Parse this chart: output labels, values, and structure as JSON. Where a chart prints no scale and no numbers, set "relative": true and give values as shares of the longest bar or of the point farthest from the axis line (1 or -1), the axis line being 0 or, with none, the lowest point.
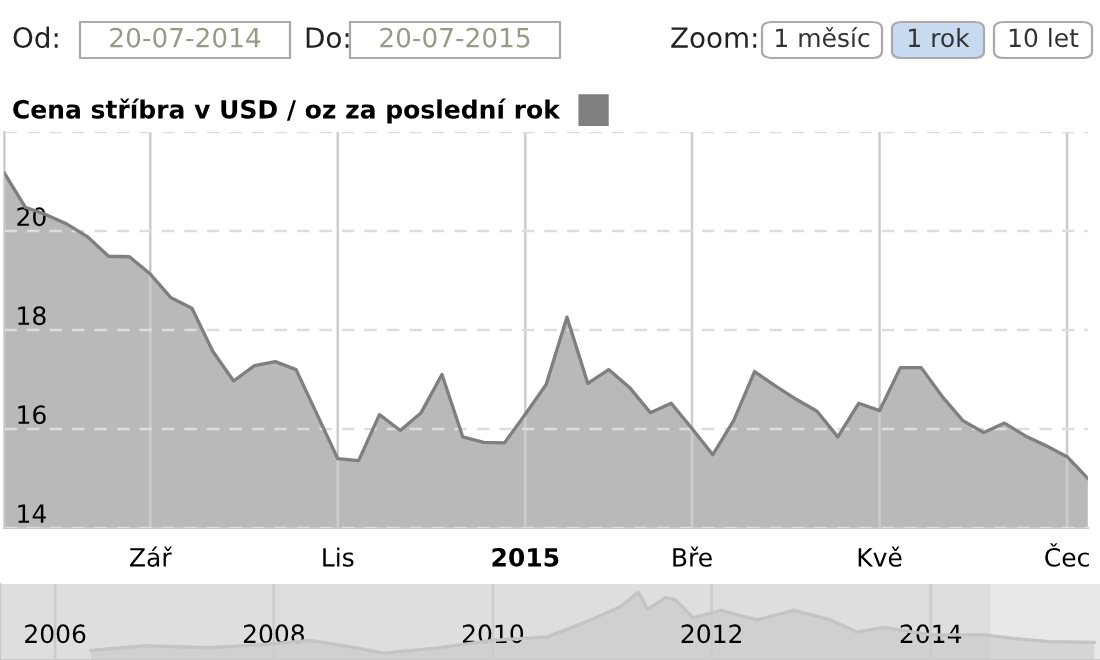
{
  "chart_data": [
    {
      "type": "area",
      "ylim": [
        14,
        22
      ],
      "yticks": [
        14,
        16,
        18,
        20,
        {
          "value": 22,
          "label": null
        }
      ],
      "categories": [
        null,
        null,
        null,
        null,
        null,
        null,
        null,
        "Zář",
        null,
        null,
        null,
        null,
        null,
        null,
        null,
        null,
        "Lis",
        null,
        null,
        null,
        null,
        null,
        null,
        null,
        null,
        "2015",
        null,
        null,
        null,
        null,
        null,
        null,
        null,
        "Bře",
        null,
        null,
        null,
        null,
        null,
        null,
        null,
        null,
        "Kvě",
        null,
        null,
        null,
        null,
        null,
        null,
        null,
        null,
        "Čec",
        null
      ],
      "grid": true,
      "legend": "top left",
      "annotations": [
        "Od:",
        "20-07-2014",
        "Do:",
        "20-07-2015",
        "Zoom:",
        "1 měsíc",
        "1 rok",
        "10 let"
      ],
      "series": [
        {
          "name": "Cena stříbra v USD / oz za poslední rok",
          "color": "#7f7f7f",
          "values": [
            21.17,
            20.48,
            20.33,
            20.14,
            19.88,
            19.49,
            19.48,
            19.13,
            18.65,
            18.44,
            17.57,
            16.97,
            17.28,
            17.36,
            17.2,
            16.3,
            15.4,
            15.36,
            16.29,
            15.97,
            16.33,
            17.1,
            15.84,
            15.73,
            15.72,
            16.3,
            16.9,
            18.26,
            16.92,
            17.2,
            16.84,
            16.33,
            16.52,
            16.01,
            15.48,
            16.17,
            17.16,
            16.87,
            16.6,
            16.36,
            15.84,
            16.52,
            16.37,
            17.24,
            17.24,
            16.66,
            16.17,
            15.93,
            16.12,
            15.86,
            15.66,
            15.44,
            15.0
          ]
        }
      ]
    },
    {
      "type": "area",
      "relative": true,
      "grid": "x",
      "xlim": [
        "2005-07-01",
        "2015-07-20"
      ],
      "xticks": [
        {
          "value": "2006-01-01",
          "label": "2006"
        },
        {
          "value": "2008-01-01",
          "label": "2008"
        },
        {
          "value": "2010-01-01",
          "label": "2010"
        },
        {
          "value": "2012-01-01",
          "label": "2012"
        },
        {
          "value": "2014-01-01",
          "label": "2014"
        }
      ],
      "bands": [
        {
          "axis": "x",
          "from": "2014-07-20",
          "to": "2015-07-20",
          "color": "#e8e8e8"
        }
      ],
      "x": [
        "2006-05",
        "2006-11",
        "2007-06",
        "2007-12",
        "2008-05",
        "2008-10",
        "2009-01",
        "2009-07",
        "2010-01",
        "2010-07",
        "2010-11",
        "2011-03",
        "2011-05",
        "2011-06",
        "2011-08",
        "2011-09",
        "2011-11",
        "2012-02",
        "2012-06",
        "2012-10",
        "2013-02",
        "2013-05",
        "2013-08",
        "2014-01",
        "2014-07",
        "2014-10",
        "2015-02",
        "2015-07"
      ],
      "series": [
        {
          "color": "#c4c4c4",
          "values": [
            0.14,
            0.21,
            0.18,
            0.23,
            0.29,
            0.18,
            0.1,
            0.18,
            0.29,
            0.34,
            0.55,
            0.78,
            1.0,
            0.75,
            0.92,
            0.89,
            0.62,
            0.73,
            0.59,
            0.73,
            0.59,
            0.41,
            0.48,
            0.37,
            0.37,
            0.32,
            0.27,
            0.26
          ]
        }
      ]
    }
  ]
}
